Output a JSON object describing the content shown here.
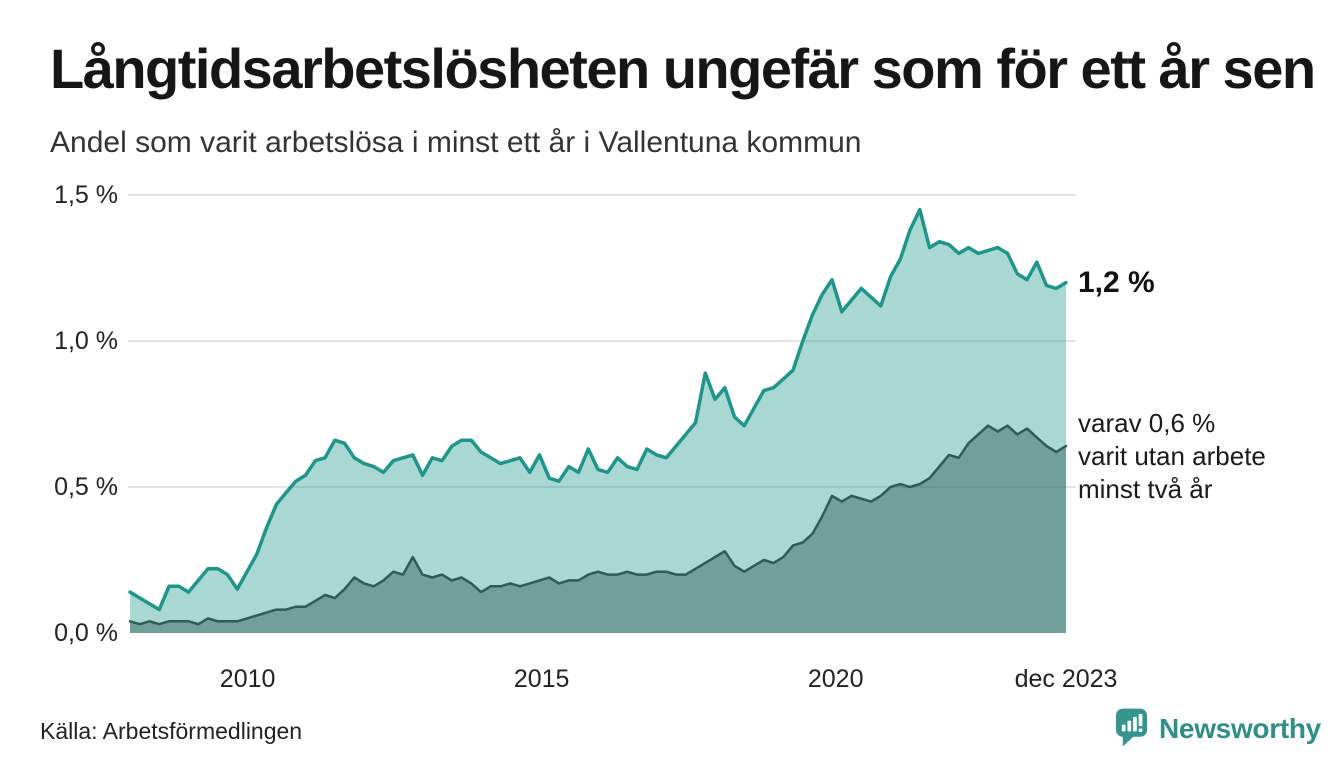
{
  "chart_data": {
    "type": "area",
    "title": "Långtidsarbetslösheten ungefär som för ett år sen",
    "subtitle": "Andel som varit arbetslösa i minst ett år i Vallentuna kommun",
    "x_start": "2008-01",
    "x_end": "2023-12",
    "points_step_months": 2,
    "total_months": 191,
    "ylim": [
      0,
      1.5
    ],
    "grid_color": "#e3e3e3",
    "yticks": [
      {
        "value": 0.0,
        "label": "0,0 %"
      },
      {
        "value": 0.5,
        "label": "0,5 %"
      },
      {
        "value": 1.0,
        "label": "1,0 %"
      },
      {
        "value": 1.5,
        "label": "1,5 %"
      }
    ],
    "xticks": [
      {
        "month": 24,
        "label": "2010"
      },
      {
        "month": 84,
        "label": "2015"
      },
      {
        "month": 144,
        "label": "2020"
      },
      {
        "month": 191,
        "label": "dec 2023"
      }
    ],
    "series": [
      {
        "name": "Andel arbetslösa minst ett år",
        "line_color": "#1e958a",
        "fill_color": "rgba(30,149,138,0.38)",
        "line_width": 3.5,
        "values": [
          0.14,
          0.12,
          0.1,
          0.08,
          0.16,
          0.16,
          0.14,
          0.18,
          0.22,
          0.22,
          0.2,
          0.15,
          0.21,
          0.27,
          0.36,
          0.44,
          0.48,
          0.52,
          0.54,
          0.59,
          0.6,
          0.66,
          0.65,
          0.6,
          0.58,
          0.57,
          0.55,
          0.59,
          0.6,
          0.61,
          0.54,
          0.6,
          0.59,
          0.64,
          0.66,
          0.66,
          0.62,
          0.6,
          0.58,
          0.59,
          0.6,
          0.55,
          0.61,
          0.53,
          0.52,
          0.57,
          0.55,
          0.63,
          0.56,
          0.55,
          0.6,
          0.57,
          0.56,
          0.63,
          0.61,
          0.6,
          0.64,
          0.68,
          0.72,
          0.89,
          0.8,
          0.84,
          0.74,
          0.71,
          0.77,
          0.83,
          0.84,
          0.87,
          0.9,
          1.0,
          1.09,
          1.16,
          1.21,
          1.1,
          1.14,
          1.18,
          1.15,
          1.12,
          1.22,
          1.28,
          1.38,
          1.45,
          1.32,
          1.34,
          1.33,
          1.3,
          1.32,
          1.3,
          1.31,
          1.32,
          1.3,
          1.23,
          1.21,
          1.27,
          1.19,
          1.18,
          1.2
        ]
      },
      {
        "name": "varav utan arbete minst två år",
        "line_color": "#2d5c54",
        "fill_color": "rgba(45,92,84,0.45)",
        "line_width": 2.5,
        "values": [
          0.04,
          0.03,
          0.04,
          0.03,
          0.04,
          0.04,
          0.04,
          0.03,
          0.05,
          0.04,
          0.04,
          0.04,
          0.05,
          0.06,
          0.07,
          0.08,
          0.08,
          0.09,
          0.09,
          0.11,
          0.13,
          0.12,
          0.15,
          0.19,
          0.17,
          0.16,
          0.18,
          0.21,
          0.2,
          0.26,
          0.2,
          0.19,
          0.2,
          0.18,
          0.19,
          0.17,
          0.14,
          0.16,
          0.16,
          0.17,
          0.16,
          0.17,
          0.18,
          0.19,
          0.17,
          0.18,
          0.18,
          0.2,
          0.21,
          0.2,
          0.2,
          0.21,
          0.2,
          0.2,
          0.21,
          0.21,
          0.2,
          0.2,
          0.22,
          0.24,
          0.26,
          0.28,
          0.23,
          0.21,
          0.23,
          0.25,
          0.24,
          0.26,
          0.3,
          0.31,
          0.34,
          0.4,
          0.47,
          0.45,
          0.47,
          0.46,
          0.45,
          0.47,
          0.5,
          0.51,
          0.5,
          0.51,
          0.53,
          0.57,
          0.61,
          0.6,
          0.65,
          0.68,
          0.71,
          0.69,
          0.71,
          0.68,
          0.7,
          0.67,
          0.64,
          0.62,
          0.64
        ]
      }
    ],
    "annotations": {
      "end_value": "1,2 %",
      "series2_label_lines": [
        "varav 0,6 %",
        "varit utan arbete",
        "minst två år"
      ]
    }
  },
  "footer": {
    "source": "Källa: Arbetsförmedlingen",
    "brand": "Newsworthy"
  },
  "brand_colors": {
    "teal": "#2f8e85",
    "icon_bubble": "#35948b"
  }
}
